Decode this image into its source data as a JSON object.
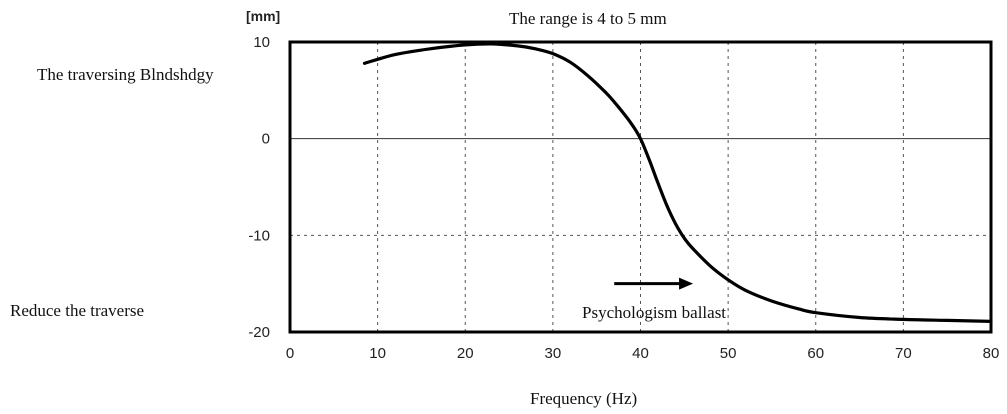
{
  "chart_data": {
    "type": "line",
    "unit_label": "[mm]",
    "top_note": "The range is 4 to 5 mm",
    "xlabel": "Frequency (Hz)",
    "annotations": {
      "upper_left": "The traversing Blndshdgy",
      "lower_left": "Reduce the traverse",
      "arrow_label": "Psychologism ballast"
    },
    "xlim": [
      0,
      80
    ],
    "ylim": [
      -20,
      10
    ],
    "x_ticks": [
      0,
      10,
      20,
      30,
      40,
      50,
      60,
      70,
      80
    ],
    "y_ticks": [
      10,
      0,
      -10,
      -20
    ],
    "y_tick_labels": [
      "10",
      "0",
      "-10",
      "-20"
    ],
    "grid": true,
    "arrow": {
      "x_start": 37,
      "x_end": 46,
      "y": -15
    },
    "series": [
      {
        "x": [
          8.5,
          12,
          16,
          20,
          23,
          26,
          28,
          30,
          32,
          34,
          36,
          37,
          38,
          39,
          40,
          41,
          42,
          43,
          44,
          45,
          46,
          48,
          50,
          52,
          55,
          58,
          60,
          65,
          70,
          75,
          80
        ],
        "y": [
          7.8,
          8.7,
          9.3,
          9.7,
          9.8,
          9.6,
          9.3,
          8.8,
          7.9,
          6.5,
          4.8,
          3.8,
          2.7,
          1.5,
          0.0,
          -2.2,
          -4.6,
          -6.9,
          -8.8,
          -10.3,
          -11.4,
          -13.2,
          -14.6,
          -15.7,
          -16.8,
          -17.6,
          -18.0,
          -18.5,
          -18.7,
          -18.8,
          -18.9
        ]
      }
    ]
  }
}
